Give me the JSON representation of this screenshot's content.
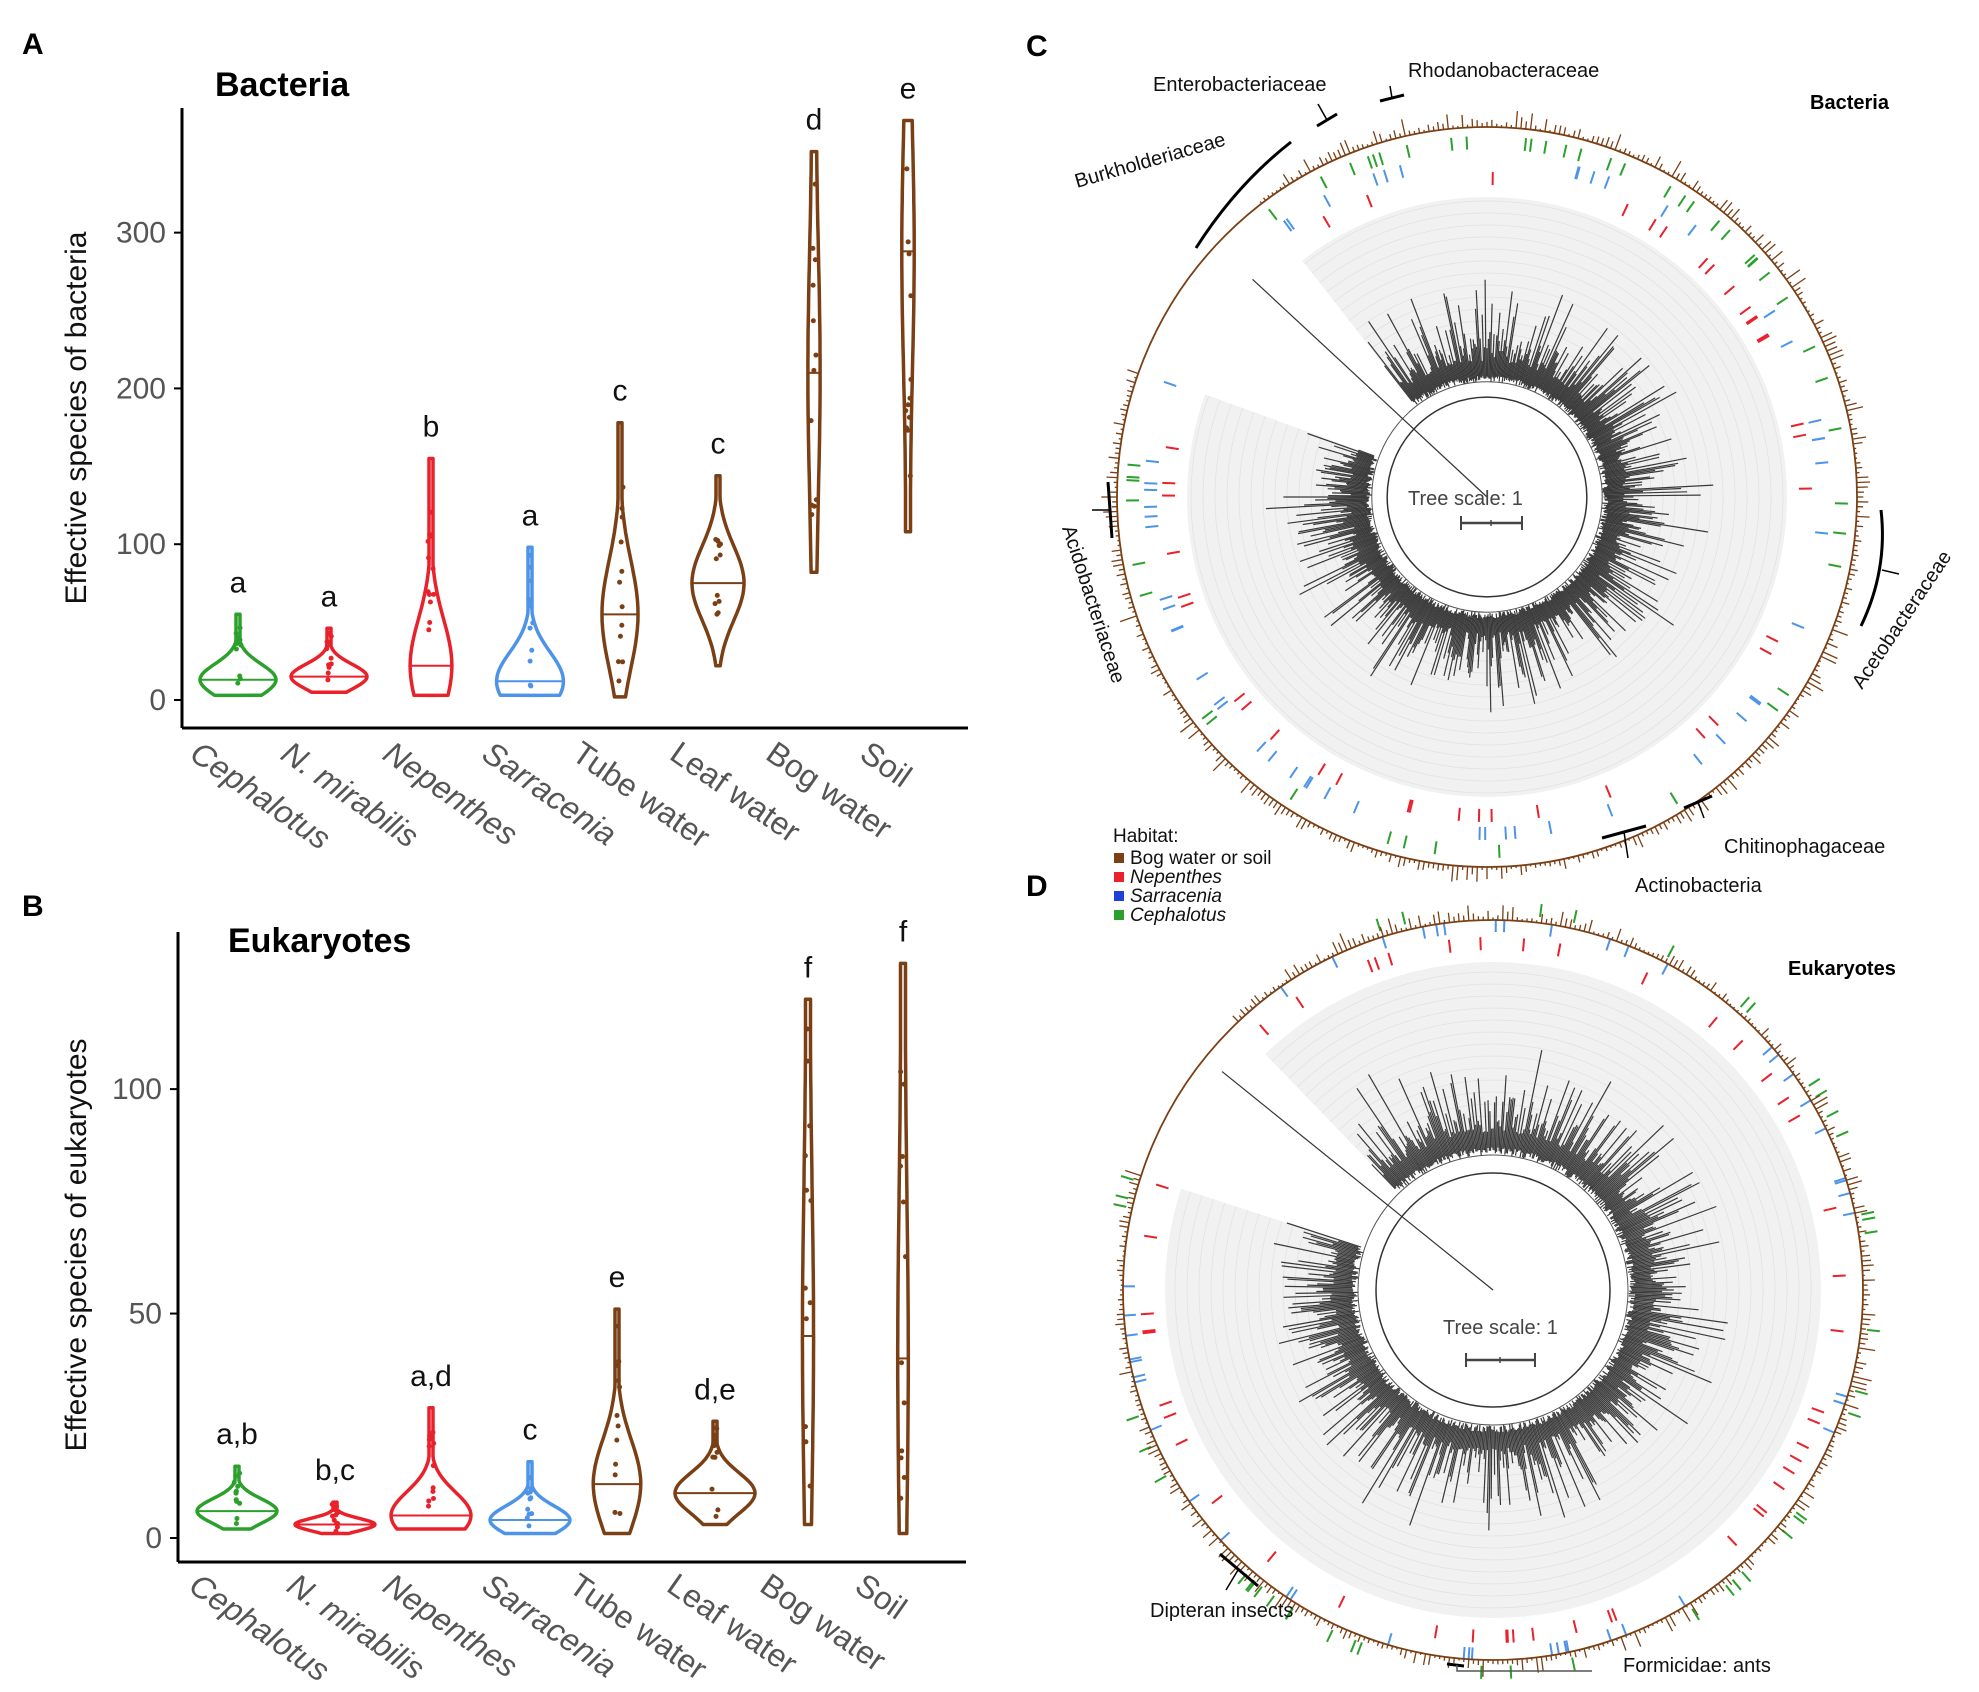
{
  "panels": {
    "A": "A",
    "B": "B",
    "C": "C",
    "D": "D"
  },
  "chart_data": [
    {
      "id": "A",
      "type": "violin",
      "title": "Bacteria",
      "xlabel": "",
      "ylabel": "Effective species of bacteria",
      "ylim": [
        0,
        380
      ],
      "yticks": [
        0,
        100,
        200,
        300
      ],
      "categories": [
        "Cephalotus",
        "N. mirabilis",
        "Nepenthes",
        "Sarracenia",
        "Tube water",
        "Leaf water",
        "Bog water",
        "Soil"
      ],
      "italic": [
        true,
        true,
        true,
        true,
        false,
        false,
        false,
        false
      ],
      "colors": [
        "#2ca02c",
        "#e8212b",
        "#e8212b",
        "#4d94e8",
        "#7a3f14",
        "#7a3f14",
        "#7a3f14",
        "#7a3f14"
      ],
      "min": [
        3,
        5,
        3,
        3,
        2,
        22,
        82,
        108
      ],
      "max": [
        55,
        46,
        155,
        98,
        178,
        144,
        352,
        372
      ],
      "median": [
        13,
        15,
        22,
        12,
        55,
        75,
        210,
        288
      ],
      "significance": [
        "a",
        "a",
        "b",
        "a",
        "c",
        "c",
        "d",
        "e"
      ]
    },
    {
      "id": "B",
      "type": "violin",
      "title": "Eukaryotes",
      "xlabel": "",
      "ylabel": "Effective species of eukaryotes",
      "ylim": [
        0,
        135
      ],
      "yticks": [
        0,
        50,
        100
      ],
      "categories": [
        "Cephalotus",
        "N. mirabilis",
        "Nepenthes",
        "Sarracenia",
        "Tube water",
        "Leaf water",
        "Bog water",
        "Soil"
      ],
      "italic": [
        true,
        true,
        true,
        true,
        false,
        false,
        false,
        false
      ],
      "colors": [
        "#2ca02c",
        "#e8212b",
        "#e8212b",
        "#4d94e8",
        "#7a3f14",
        "#7a3f14",
        "#7a3f14",
        "#7a3f14"
      ],
      "min": [
        2,
        1,
        2,
        1,
        1,
        3,
        3,
        1
      ],
      "max": [
        16,
        8,
        29,
        17,
        51,
        26,
        120,
        128
      ],
      "median": [
        6,
        3,
        5,
        4,
        12,
        10,
        45,
        40
      ],
      "significance": [
        "a,b",
        "b,c",
        "a,d",
        "c",
        "e",
        "d,e",
        "f",
        "f"
      ]
    }
  ],
  "trees": {
    "C": {
      "title": "Bacteria",
      "scale_label": "Tree scale: 1",
      "clades": [
        "Enterobacteriaceae",
        "Rhodanobacteraceae",
        "Burkholderiaceae",
        "Acidobacteriaceae",
        "Acetobacteraceae",
        "Chitinophagaceae",
        "Actinobacteria"
      ]
    },
    "D": {
      "title": "Eukaryotes",
      "scale_label": "Tree scale: 1",
      "clades": [
        "Dipteran insects",
        "Formicidae: ants"
      ]
    }
  },
  "legend": {
    "title": "Habitat:",
    "items": [
      {
        "label": "Bog water or soil",
        "color": "#7a3f14",
        "italic": false
      },
      {
        "label": "Nepenthes",
        "color": "#e8212b",
        "italic": true
      },
      {
        "label": "Sarracenia",
        "color": "#1f3fd6",
        "italic": true
      },
      {
        "label": "Cephalotus",
        "color": "#2ca02c",
        "italic": true
      }
    ]
  }
}
